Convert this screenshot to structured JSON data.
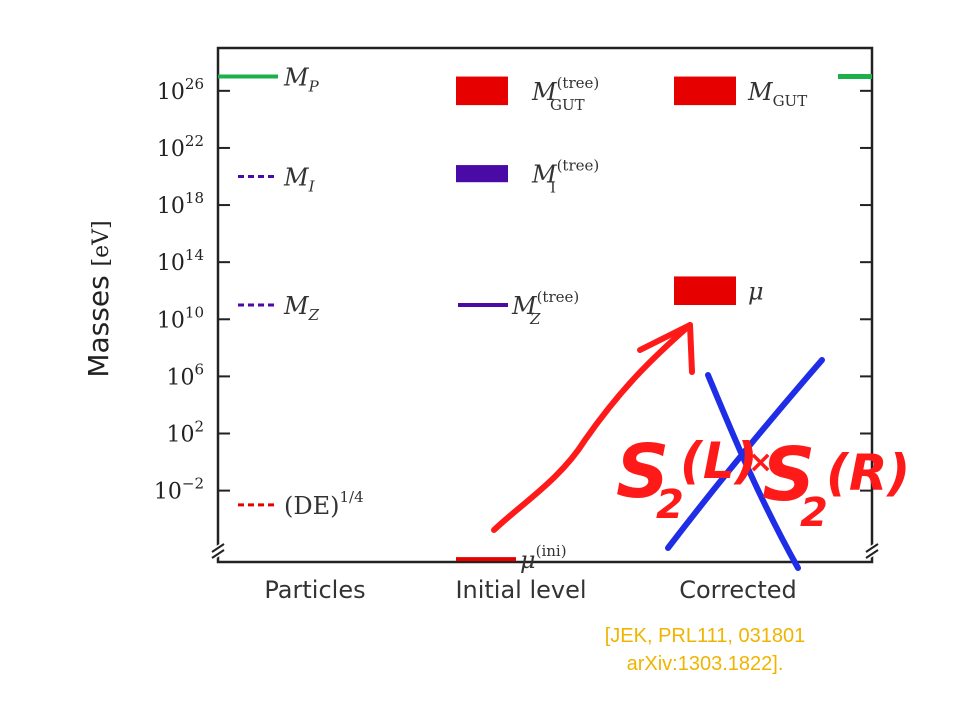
{
  "colors": {
    "planck": "#1bb04a",
    "purple": "#4a0aa6",
    "red": "#e60000",
    "orange_cite": "#f0b400",
    "ink_red": "#ff1a1a",
    "ink_blue": "#1f2ee6",
    "axis": "#222222"
  },
  "chart_data": {
    "type": "levels",
    "title": "",
    "ylabel": "Masses",
    "ylabel_unit": "[eV]",
    "yscale": "log10",
    "ylim_log10": [
      -7,
      29
    ],
    "yticks_log10": [
      -2,
      2,
      6,
      10,
      14,
      18,
      22,
      26
    ],
    "ytick_base": "10",
    "ytick_exponents": [
      "−2",
      "2",
      "6",
      "10",
      "14",
      "18",
      "22",
      "26"
    ],
    "categories": [
      "Particles",
      "Initial level",
      "Corrected"
    ],
    "levels": [
      {
        "category": 0,
        "log10_mass": 27.0,
        "style": "solid",
        "color": "planck",
        "symbol": "M",
        "sub": "P",
        "sup": ""
      },
      {
        "category": 0,
        "log10_mass": 20.0,
        "style": "dashed",
        "color": "purple",
        "symbol": "M",
        "sub": "I",
        "sup": ""
      },
      {
        "category": 0,
        "log10_mass": 11.0,
        "style": "dashed",
        "color": "purple",
        "symbol": "M",
        "sub": "Z",
        "sup": ""
      },
      {
        "category": 0,
        "log10_mass": -3.0,
        "style": "dashed",
        "color": "red",
        "symbol": "(DE)",
        "sub": "",
        "sup": "1/4"
      },
      {
        "category": 1,
        "log10_mass_low": 25.0,
        "log10_mass_high": 27.0,
        "style": "block",
        "color": "red",
        "symbol": "M",
        "sub": "GUT",
        "sup": "(tree)"
      },
      {
        "category": 1,
        "log10_mass_low": 19.6,
        "log10_mass_high": 20.8,
        "style": "block",
        "color": "purple",
        "symbol": "M",
        "sub": "I",
        "sup": "(tree)"
      },
      {
        "category": 1,
        "log10_mass": 11.0,
        "style": "solid",
        "color": "purple",
        "symbol": "M",
        "sub": "Z",
        "sup": "(tree)"
      },
      {
        "category": 1,
        "log10_mass": -6.8,
        "style": "solid",
        "color": "red",
        "symbol": "μ",
        "sub": "",
        "sup": "(ini)"
      },
      {
        "category": 2,
        "log10_mass_low": 25.0,
        "log10_mass_high": 27.0,
        "style": "block",
        "color": "red",
        "symbol": "M",
        "sub": "GUT",
        "sup": ""
      },
      {
        "category": 2,
        "log10_mass_low": 11.0,
        "log10_mass_high": 13.0,
        "style": "block",
        "color": "red",
        "symbol": "μ",
        "sub": "",
        "sup": ""
      }
    ],
    "right_marker": {
      "log10_mass": 27.0,
      "color": "planck"
    }
  },
  "annotation": {
    "text_left": "S",
    "text_left_sub": "2",
    "text_left_paren": "(L)",
    "text_right": "S",
    "text_right_sub": "2",
    "text_right_paren": "(R)"
  },
  "citation": {
    "line1": "[JEK, PRL111, 031801",
    "line2": "arXiv:1303.1822]."
  }
}
